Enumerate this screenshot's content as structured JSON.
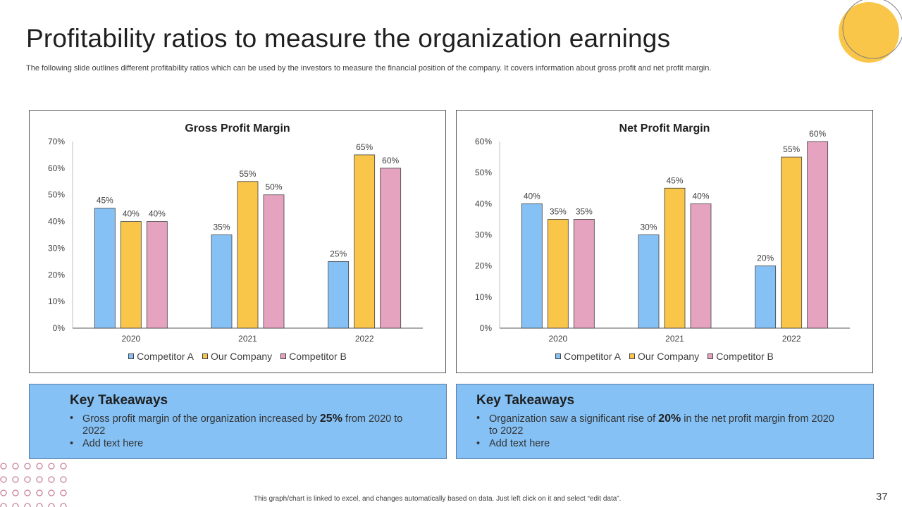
{
  "slide": {
    "title": "Profitability ratios to measure the organization earnings",
    "subtitle": "The following slide outlines different profitability ratios which can be used by the investors to measure the financial position of the company. It covers information about gross profit and net profit margin.",
    "footnote": "This graph/chart is linked to excel, and changes automatically based on data. Just left click on it and select “edit data”.",
    "page_number": "37"
  },
  "colors": {
    "competitor_a": "#85c1f5",
    "our_company": "#fac64a",
    "competitor_b": "#e6a3c0",
    "accent_yellow": "#fac64a",
    "takeaway_bg": "#85c1f5",
    "dots": "#c9809c"
  },
  "chart_data": [
    {
      "type": "bar",
      "title": "Gross Profit Margin",
      "categories": [
        "2020",
        "2021",
        "2022"
      ],
      "series": [
        {
          "name": "Competitor A",
          "values": [
            45,
            35,
            25
          ]
        },
        {
          "name": "Our Company",
          "values": [
            40,
            55,
            65
          ]
        },
        {
          "name": "Competitor B",
          "values": [
            40,
            50,
            60
          ]
        }
      ],
      "value_labels": [
        [
          "45%",
          "35%",
          "25%"
        ],
        [
          "40%",
          "55%",
          "65%"
        ],
        [
          "40%",
          "50%",
          "60%"
        ]
      ],
      "ylim": [
        0,
        70
      ],
      "yticks": [
        "0%",
        "10%",
        "20%",
        "30%",
        "40%",
        "50%",
        "60%",
        "70%"
      ],
      "grid": false,
      "legend": "bottom"
    },
    {
      "type": "bar",
      "title": "Net Profit Margin",
      "categories": [
        "2020",
        "2021",
        "2022"
      ],
      "series": [
        {
          "name": "Competitor A",
          "values": [
            40,
            30,
            20
          ]
        },
        {
          "name": "Our Company",
          "values": [
            35,
            45,
            55
          ]
        },
        {
          "name": "Competitor B",
          "values": [
            35,
            40,
            60
          ]
        }
      ],
      "value_labels": [
        [
          "40%",
          "30%",
          "20%"
        ],
        [
          "35%",
          "45%",
          "55%"
        ],
        [
          "35%",
          "40%",
          "60%"
        ]
      ],
      "ylim": [
        0,
        60
      ],
      "yticks": [
        "0%",
        "10%",
        "20%",
        "30%",
        "40%",
        "50%",
        "60%"
      ],
      "grid": false,
      "legend": "bottom"
    }
  ],
  "takeaways": [
    {
      "title": "Key Takeaways",
      "bullet1": {
        "before": "Gross profit margin of the organization increased by ",
        "highlight": "25%",
        "after": " from 2020 to 2022"
      },
      "bullet2": "Add text here"
    },
    {
      "title": "Key Takeaways",
      "bullet1": {
        "before": "Organization saw a significant rise of ",
        "highlight": "20%",
        "after": " in the net profit margin from 2020 to 2022"
      },
      "bullet2": "Add text here"
    }
  ]
}
